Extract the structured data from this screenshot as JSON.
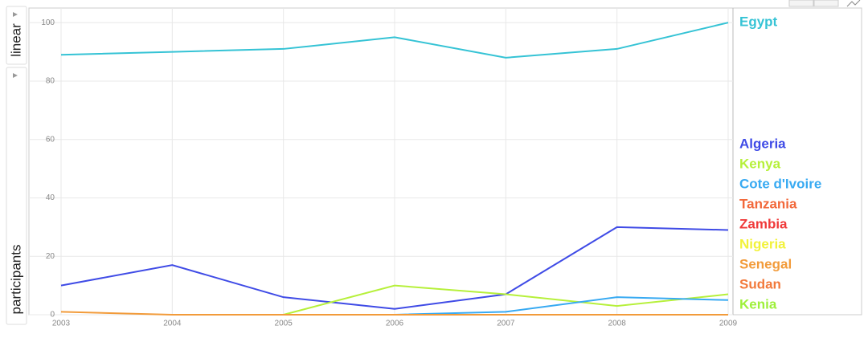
{
  "chart_data": {
    "type": "line",
    "ylabel": "participants",
    "scale": "linear",
    "x": [
      2003,
      2004,
      2005,
      2006,
      2007,
      2008,
      2009
    ],
    "xlim": [
      2003,
      2009
    ],
    "xticks": [
      2003,
      2004,
      2005,
      2006,
      2007,
      2008,
      2009
    ],
    "ylim": [
      0,
      105
    ],
    "yticks": [
      0,
      20,
      40,
      60,
      80,
      100
    ],
    "grid": true,
    "series": [
      {
        "name": "Egypt",
        "color": "#35c3d5",
        "values": [
          89,
          90,
          91,
          95,
          88,
          91,
          100
        ]
      },
      {
        "name": "Algeria",
        "color": "#3f4be6",
        "values": [
          10,
          17,
          6,
          2,
          7,
          30,
          29
        ]
      },
      {
        "name": "Kenya",
        "color": "#b6f03a",
        "values": [
          null,
          null,
          0,
          10,
          7,
          3,
          7
        ]
      },
      {
        "name": "Cote d'Ivoire",
        "color": "#38aaf2",
        "values": [
          null,
          0,
          0,
          0,
          1,
          6,
          5
        ]
      },
      {
        "name": "Tanzania",
        "color": "#f2683a",
        "values": [
          null,
          null,
          null,
          null,
          null,
          null,
          null
        ]
      },
      {
        "name": "Zambia",
        "color": "#f03a3a",
        "values": [
          null,
          null,
          null,
          null,
          null,
          null,
          null
        ]
      },
      {
        "name": "Nigeria",
        "color": "#f2f23a",
        "values": [
          null,
          null,
          null,
          null,
          null,
          null,
          null
        ]
      },
      {
        "name": "Senegal",
        "color": "#f29b3a",
        "values": [
          1,
          0,
          0,
          0,
          0,
          0,
          0
        ]
      },
      {
        "name": "Sudan",
        "color": "#f2793a",
        "values": [
          null,
          null,
          null,
          null,
          null,
          null,
          null
        ]
      },
      {
        "name": "Kenia",
        "color": "#9ef03a",
        "values": [
          null,
          null,
          null,
          null,
          null,
          null,
          null
        ]
      }
    ]
  }
}
